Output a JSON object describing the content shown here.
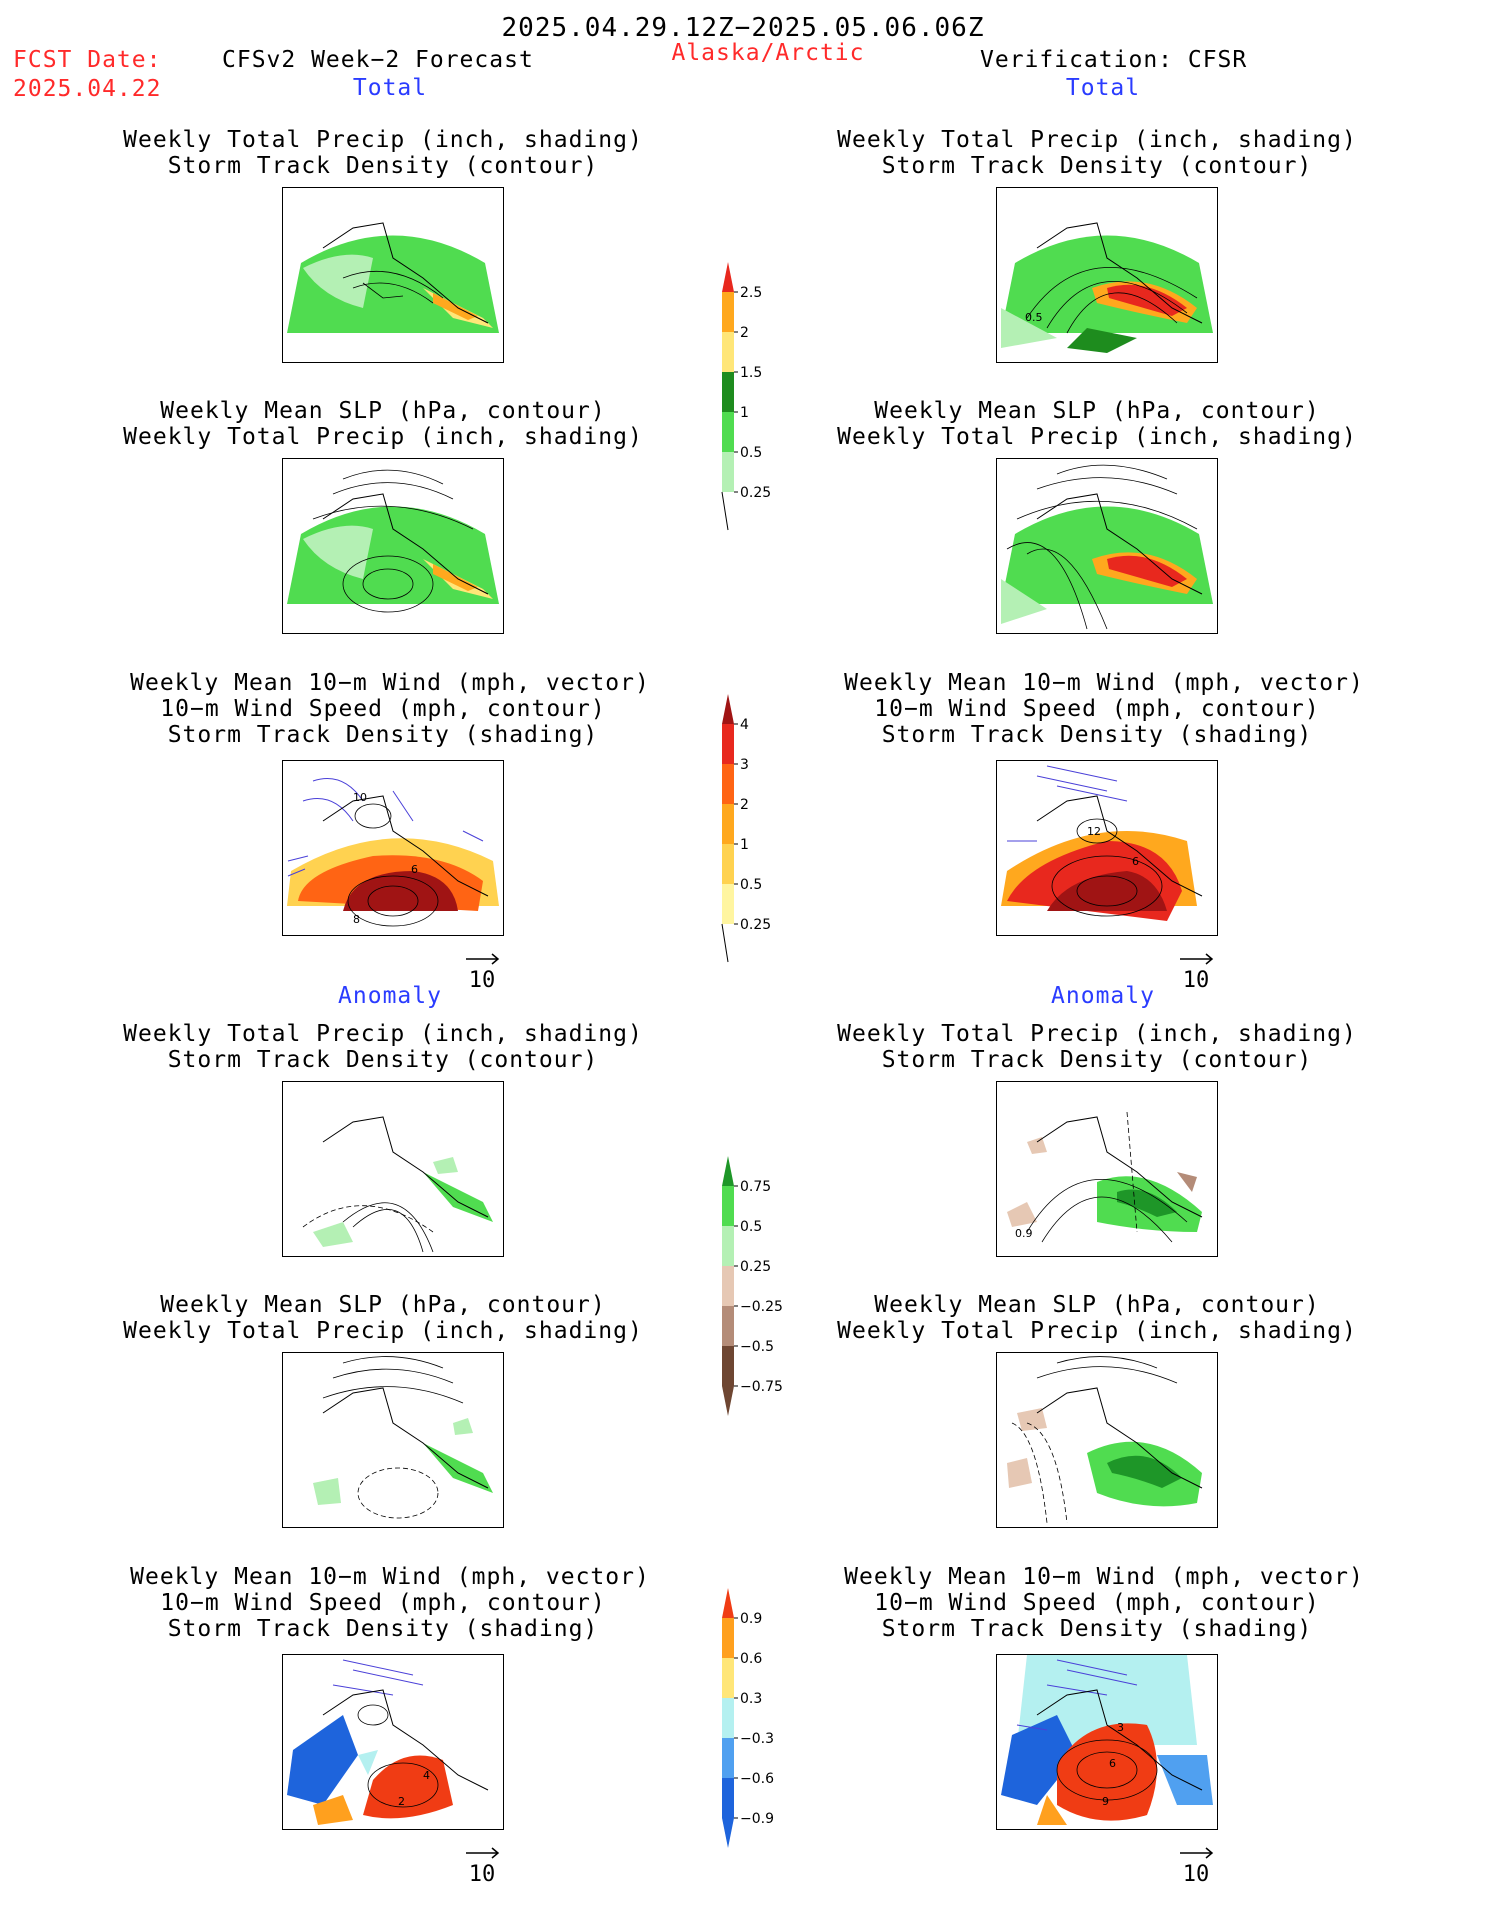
{
  "header": {
    "title": "2025.04.29.12Z−2025.05.06.06Z",
    "fcst_label": "FCST Date:",
    "fcst_date": "2025.04.22",
    "model": "CFSv2 Week−2 Forecast",
    "region": "Alaska/Arctic",
    "verification": "Verification: CFSR"
  },
  "sections": {
    "total": "Total",
    "anomaly": "Anomaly"
  },
  "panel_titles": {
    "precip_storm": [
      "Weekly Total Precip (inch, shading)",
      "Storm Track Density (contour)"
    ],
    "slp_precip": [
      "Weekly Mean SLP (hPa, contour)",
      "Weekly Total Precip (inch, shading)"
    ],
    "wind_storm": [
      "Weekly Mean 10−m Wind (mph, vector)",
      "10−m Wind Speed (mph, contour)",
      "Storm Track Density (shading)"
    ]
  },
  "vector_scale": "10",
  "panel_labels": {
    "total_precip_right": "0.5",
    "total_wind_left_a": "10",
    "total_wind_left_b": "6",
    "total_wind_left_c": "8",
    "total_wind_right_a": "12",
    "total_wind_right_b": "6",
    "anom_precip_right": "0.9",
    "anom_wind_left_a": "4",
    "anom_wind_left_b": "2",
    "anom_wind_right_a": "3",
    "anom_wind_right_b": "6",
    "anom_wind_right_c": "9"
  },
  "colorbars": {
    "total_precip": {
      "labels": [
        "2.5",
        "2",
        "1.5",
        "1",
        "0.5",
        "0.25"
      ],
      "colors": [
        "#e8281e",
        "#ffa81e",
        "#ffe678",
        "#1e8c1e",
        "#50dc50",
        "#b4f0b4"
      ]
    },
    "storm_density": {
      "labels": [
        "4",
        "3",
        "2",
        "1",
        "0.5",
        "0.25"
      ],
      "colors": [
        "#a01414",
        "#e8281e",
        "#ff6414",
        "#ffa81e",
        "#ffd250",
        "#fff5a0"
      ]
    },
    "anom_precip": {
      "labels": [
        "0.75",
        "0.5",
        "0.25",
        "−0.25",
        "−0.5",
        "−0.75"
      ],
      "colors": [
        "#1e9628",
        "#50dc50",
        "#b4f0b4",
        "#e6c8b4",
        "#b48c78",
        "#6e4632"
      ]
    },
    "anom_storm": {
      "labels": [
        "0.9",
        "0.6",
        "0.3",
        "−0.3",
        "−0.6",
        "−0.9"
      ],
      "colors": [
        "#f03c14",
        "#ffa01e",
        "#ffe678",
        "#b4f0f0",
        "#50a0f0",
        "#1e64dc"
      ]
    }
  }
}
